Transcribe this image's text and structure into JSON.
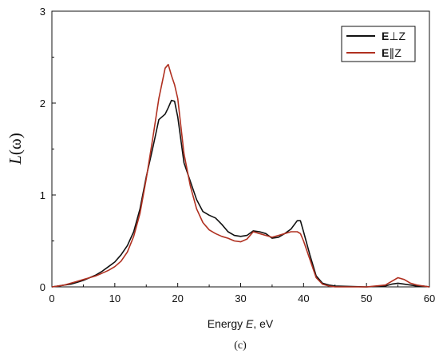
{
  "chart_data": {
    "type": "line",
    "title": "",
    "xlabel": "Energy E, eV",
    "ylabel": "L(ω)",
    "caption": "(c)",
    "xlim": [
      0,
      60
    ],
    "ylim": [
      0,
      3
    ],
    "xticks": [
      0,
      10,
      20,
      30,
      40,
      50,
      60
    ],
    "yticks": [
      0,
      1,
      2,
      3
    ],
    "grid": false,
    "legend_position": "top-right",
    "series": [
      {
        "name": "E⊥Z",
        "color": "#111111",
        "x": [
          0,
          1,
          2,
          3,
          4,
          5,
          6,
          7,
          8,
          9,
          10,
          11,
          12,
          13,
          14,
          15,
          16,
          17,
          18,
          18.5,
          19,
          19.5,
          20,
          20.5,
          21,
          22,
          23,
          24,
          25,
          26,
          27,
          28,
          29,
          30,
          31,
          32,
          33,
          34,
          35,
          36,
          37,
          38,
          39,
          39.5,
          40,
          41,
          42,
          43,
          44,
          45,
          50,
          53,
          54,
          55,
          56,
          57,
          58,
          59,
          60
        ],
        "y": [
          0.0,
          0.01,
          0.02,
          0.03,
          0.05,
          0.07,
          0.1,
          0.13,
          0.17,
          0.22,
          0.27,
          0.35,
          0.45,
          0.6,
          0.85,
          1.2,
          1.5,
          1.82,
          1.88,
          1.95,
          2.03,
          2.02,
          1.85,
          1.6,
          1.35,
          1.15,
          0.95,
          0.82,
          0.78,
          0.75,
          0.68,
          0.6,
          0.56,
          0.55,
          0.56,
          0.61,
          0.6,
          0.58,
          0.53,
          0.54,
          0.58,
          0.63,
          0.72,
          0.72,
          0.6,
          0.35,
          0.12,
          0.04,
          0.02,
          0.01,
          0.0,
          0.01,
          0.03,
          0.04,
          0.03,
          0.02,
          0.01,
          0.01,
          0.0
        ]
      },
      {
        "name": "E∥Z",
        "color": "#b03020",
        "x": [
          0,
          1,
          2,
          3,
          4,
          5,
          6,
          7,
          8,
          9,
          10,
          11,
          12,
          13,
          14,
          15,
          16,
          17,
          18,
          18.5,
          19,
          19.5,
          20,
          20.5,
          21,
          22,
          23,
          24,
          25,
          26,
          27,
          28,
          29,
          30,
          31,
          32,
          33,
          34,
          35,
          36,
          37,
          38,
          39,
          39.5,
          40,
          41,
          42,
          43,
          44,
          45,
          50,
          53,
          54,
          55,
          56,
          57,
          58,
          59,
          60
        ],
        "y": [
          0.0,
          0.01,
          0.02,
          0.04,
          0.06,
          0.08,
          0.1,
          0.12,
          0.15,
          0.18,
          0.22,
          0.28,
          0.38,
          0.55,
          0.8,
          1.18,
          1.6,
          2.05,
          2.38,
          2.42,
          2.3,
          2.2,
          2.05,
          1.75,
          1.45,
          1.1,
          0.85,
          0.7,
          0.62,
          0.58,
          0.55,
          0.53,
          0.5,
          0.49,
          0.52,
          0.6,
          0.58,
          0.56,
          0.54,
          0.56,
          0.58,
          0.6,
          0.6,
          0.58,
          0.5,
          0.3,
          0.1,
          0.03,
          0.01,
          0.0,
          0.0,
          0.02,
          0.06,
          0.1,
          0.08,
          0.04,
          0.02,
          0.01,
          0.0
        ]
      }
    ]
  }
}
